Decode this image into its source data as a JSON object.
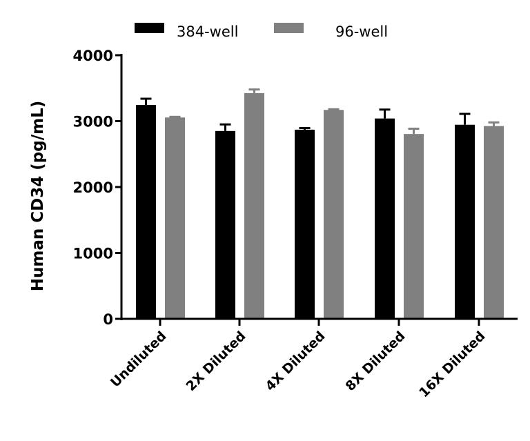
{
  "chart_data": {
    "type": "bar",
    "title": "",
    "xlabel": "",
    "ylabel": "Human CD34 (pg/mL)",
    "ylim": [
      0,
      4000
    ],
    "yticks": [
      0,
      1000,
      2000,
      3000,
      4000
    ],
    "ytick_labels": [
      "0",
      "1000",
      "2000",
      "3000",
      "4000"
    ],
    "grid": false,
    "legend_position": "top",
    "categories": [
      "Undiluted",
      "2X Diluted",
      "4X Diluted",
      "8X Diluted",
      "16X Diluted"
    ],
    "series": [
      {
        "name": "384-well",
        "color": "#000000",
        "values": [
          3245,
          2850,
          2870,
          3040,
          2945
        ],
        "errors": [
          95,
          100,
          25,
          135,
          165
        ]
      },
      {
        "name": "96-well",
        "color": "#808080",
        "values": [
          3055,
          3425,
          3170,
          2805,
          2925
        ],
        "errors": [
          10,
          55,
          10,
          80,
          55
        ]
      }
    ]
  },
  "legend": {
    "items": [
      {
        "label": "384-well",
        "color": "#000000"
      },
      {
        "label": "96-well",
        "color": "#808080"
      }
    ]
  }
}
